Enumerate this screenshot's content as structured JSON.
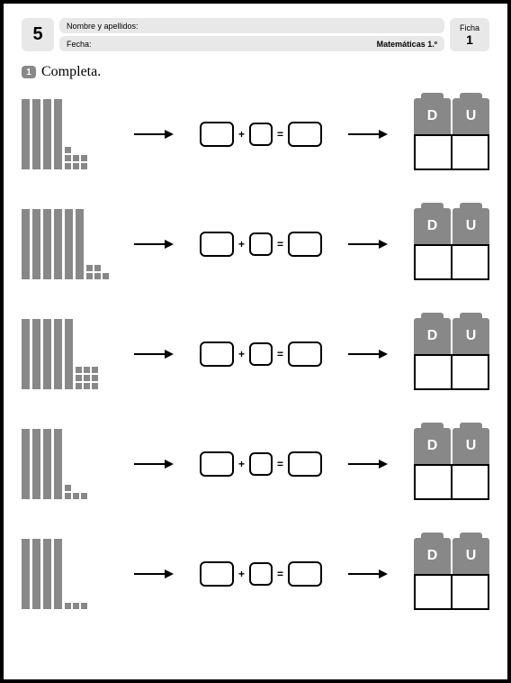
{
  "header": {
    "page_number": "5",
    "name_label": "Nombre y apellidos:",
    "date_label": "Fecha:",
    "subject": "Matemáticas 1.º",
    "ficha_label": "Ficha",
    "ficha_number": "1"
  },
  "instruction": {
    "num": "1",
    "text": "Completa."
  },
  "colors": {
    "grey": "#888888",
    "light_grey": "#e8e8e8",
    "border": "#000000"
  },
  "du_labels": {
    "tens": "D",
    "units": "U"
  },
  "operators": {
    "plus": "+",
    "equals": "="
  },
  "rows": [
    {
      "tens": 4,
      "units": 7
    },
    {
      "tens": 6,
      "units": 5
    },
    {
      "tens": 5,
      "units": 9
    },
    {
      "tens": 4,
      "units": 4
    },
    {
      "tens": 4,
      "units": 3
    }
  ]
}
